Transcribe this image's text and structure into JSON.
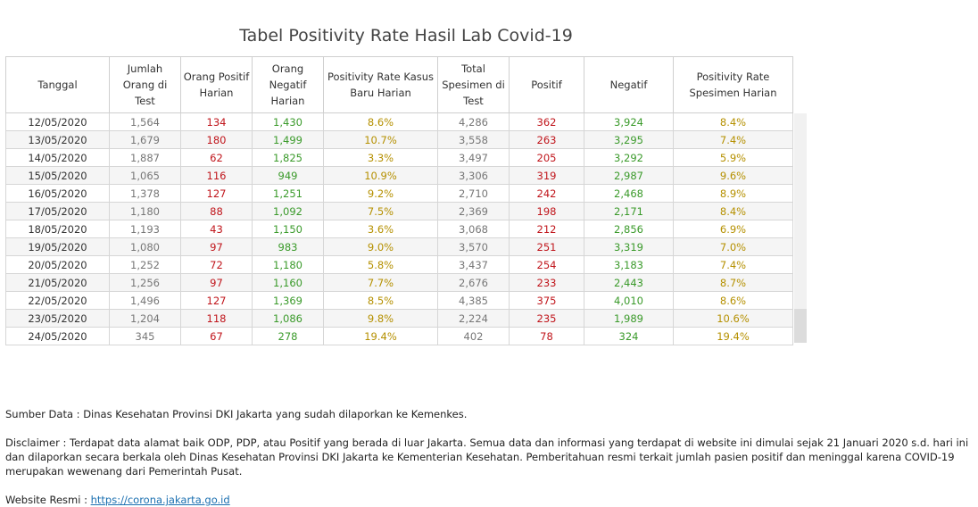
{
  "title": "Tabel Positivity Rate Hasil Lab Covid-19",
  "table": {
    "headers": [
      "Tanggal",
      "Jumlah Orang di Test",
      "Orang Positif Harian",
      "Orang Negatif Harian",
      "Positivity Rate Kasus Baru Harian",
      "Total Spesimen di Test",
      "Positif",
      "Negatif",
      "Positivity Rate Spesimen Harian"
    ],
    "rows": [
      [
        "12/05/2020",
        "1,564",
        "134",
        "1,430",
        "8.6%",
        "4,286",
        "362",
        "3,924",
        "8.4%"
      ],
      [
        "13/05/2020",
        "1,679",
        "180",
        "1,499",
        "10.7%",
        "3,558",
        "263",
        "3,295",
        "7.4%"
      ],
      [
        "14/05/2020",
        "1,887",
        "62",
        "1,825",
        "3.3%",
        "3,497",
        "205",
        "3,292",
        "5.9%"
      ],
      [
        "15/05/2020",
        "1,065",
        "116",
        "949",
        "10.9%",
        "3,306",
        "319",
        "2,987",
        "9.6%"
      ],
      [
        "16/05/2020",
        "1,378",
        "127",
        "1,251",
        "9.2%",
        "2,710",
        "242",
        "2,468",
        "8.9%"
      ],
      [
        "17/05/2020",
        "1,180",
        "88",
        "1,092",
        "7.5%",
        "2,369",
        "198",
        "2,171",
        "8.4%"
      ],
      [
        "18/05/2020",
        "1,193",
        "43",
        "1,150",
        "3.6%",
        "3,068",
        "212",
        "2,856",
        "6.9%"
      ],
      [
        "19/05/2020",
        "1,080",
        "97",
        "983",
        "9.0%",
        "3,570",
        "251",
        "3,319",
        "7.0%"
      ],
      [
        "20/05/2020",
        "1,252",
        "72",
        "1,180",
        "5.8%",
        "3,437",
        "254",
        "3,183",
        "7.4%"
      ],
      [
        "21/05/2020",
        "1,256",
        "97",
        "1,160",
        "7.7%",
        "2,676",
        "233",
        "2,443",
        "8.7%"
      ],
      [
        "22/05/2020",
        "1,496",
        "127",
        "1,369",
        "8.5%",
        "4,385",
        "375",
        "4,010",
        "8.6%"
      ],
      [
        "23/05/2020",
        "1,204",
        "118",
        "1,086",
        "9.8%",
        "2,224",
        "235",
        "1,989",
        "10.6%"
      ],
      [
        "24/05/2020",
        "345",
        "67",
        "278",
        "19.4%",
        "402",
        "78",
        "324",
        "19.4%"
      ]
    ]
  },
  "colors": {
    "date": "#333333",
    "count": "#777777",
    "positive": "#c0151b",
    "negative": "#3a9a2a",
    "rate": "#b59000"
  },
  "footer": {
    "source": "Sumber Data : Dinas Kesehatan Provinsi DKI Jakarta yang sudah dilaporkan ke Kemenkes.",
    "disclaimer": "Disclaimer : Terdapat data alamat baik ODP, PDP, atau Positif yang berada di luar Jakarta. Semua data dan informasi yang terdapat di website ini dimulai sejak 21 Januari 2020 s.d. hari ini dan dilaporkan secara berkala oleh Dinas Kesehatan Provinsi DKI Jakarta ke Kementerian Kesehatan. Pemberitahuan resmi terkait jumlah pasien positif dan meninggal karena COVID-19 merupakan wewenang dari Pemerintah Pusat.",
    "website_label": "Website Resmi : ",
    "website_link": "https://corona.jakarta.go.id"
  }
}
